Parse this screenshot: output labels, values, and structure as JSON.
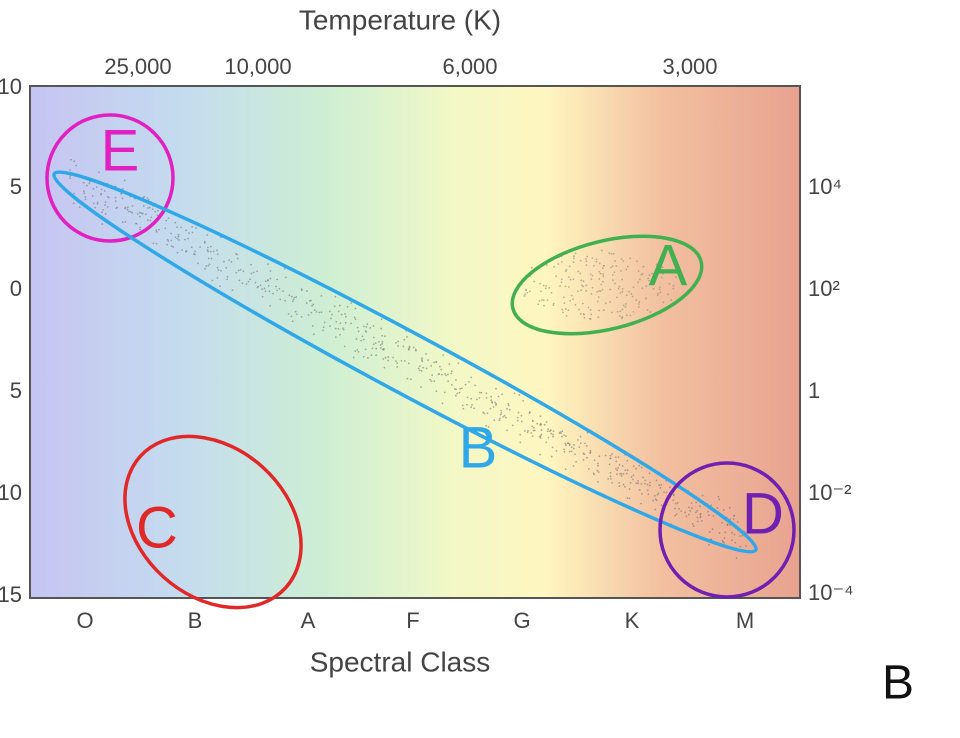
{
  "title": "Temperature (K)",
  "top_axis": [
    "25,000",
    "10,000",
    "6,000",
    "3,000"
  ],
  "left_axis": [
    "10",
    "5",
    "0",
    "5",
    "10",
    "15"
  ],
  "right_axis": [
    "10⁴",
    "10²",
    "1",
    "10⁻²",
    "10⁻⁴"
  ],
  "bottom_axis": [
    "O",
    "B",
    "A",
    "F",
    "G",
    "K",
    "M"
  ],
  "x_label": "Spectral Class",
  "regions": [
    {
      "label": "E",
      "color": "#e020c0"
    },
    {
      "label": "B",
      "color": "#30a8e8"
    },
    {
      "label": "A",
      "color": "#40b050"
    },
    {
      "label": "C",
      "color": "#e02828"
    },
    {
      "label": "D",
      "color": "#7020b0"
    }
  ],
  "panel_label": "B"
}
